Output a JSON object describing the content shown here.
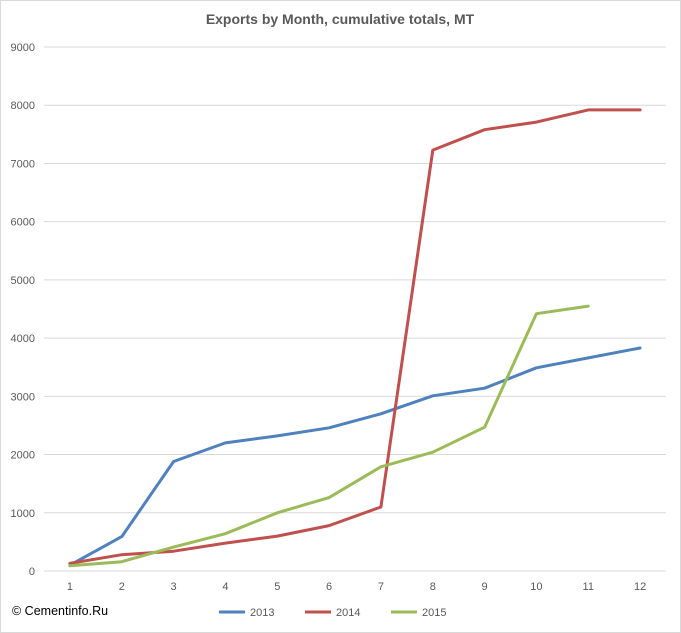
{
  "chart_data": {
    "type": "line",
    "title": "Exports by Month, cumulative totals, MT",
    "xlabel": "",
    "ylabel": "",
    "categories": [
      "1",
      "2",
      "3",
      "4",
      "5",
      "6",
      "7",
      "8",
      "9",
      "10",
      "11",
      "12"
    ],
    "ylim": [
      0,
      9000
    ],
    "yticks": [
      0,
      1000,
      2000,
      3000,
      4000,
      5000,
      6000,
      7000,
      8000,
      9000
    ],
    "grid": true,
    "legend_position": "bottom",
    "series": [
      {
        "name": "2013",
        "color": "#4f81bd",
        "values": [
          100,
          590,
          1880,
          2200,
          2320,
          2460,
          2700,
          3010,
          3140,
          3490,
          3660,
          3830
        ]
      },
      {
        "name": "2014",
        "color": "#c0504d",
        "values": [
          130,
          280,
          340,
          480,
          600,
          780,
          1100,
          7230,
          7580,
          7710,
          7920,
          7920
        ]
      },
      {
        "name": "2015",
        "color": "#9bbb59",
        "values": [
          90,
          160,
          410,
          640,
          1000,
          1260,
          1790,
          2040,
          2470,
          4420,
          4550,
          null
        ]
      }
    ]
  },
  "footer": {
    "copyright": "© Cementinfo.Ru"
  }
}
